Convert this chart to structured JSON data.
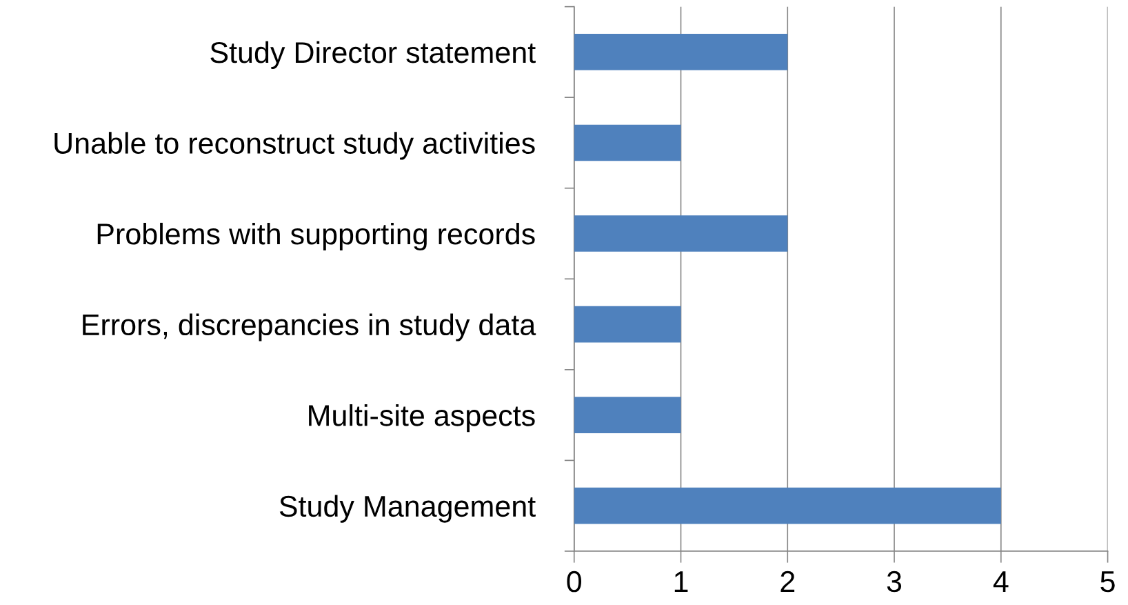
{
  "chart_data": {
    "type": "bar",
    "orientation": "horizontal",
    "categories": [
      "Study Director statement",
      "Unable to reconstruct study activities",
      "Problems with supporting records",
      "Errors, discrepancies in study data",
      "Multi-site aspects",
      "Study Management"
    ],
    "values": [
      2,
      1,
      2,
      1,
      1,
      4
    ],
    "color": "#4f81bd",
    "xlim": [
      0,
      5
    ],
    "xticks": [
      0,
      1,
      2,
      3,
      4,
      5
    ],
    "grid": "x",
    "legend": false
  }
}
